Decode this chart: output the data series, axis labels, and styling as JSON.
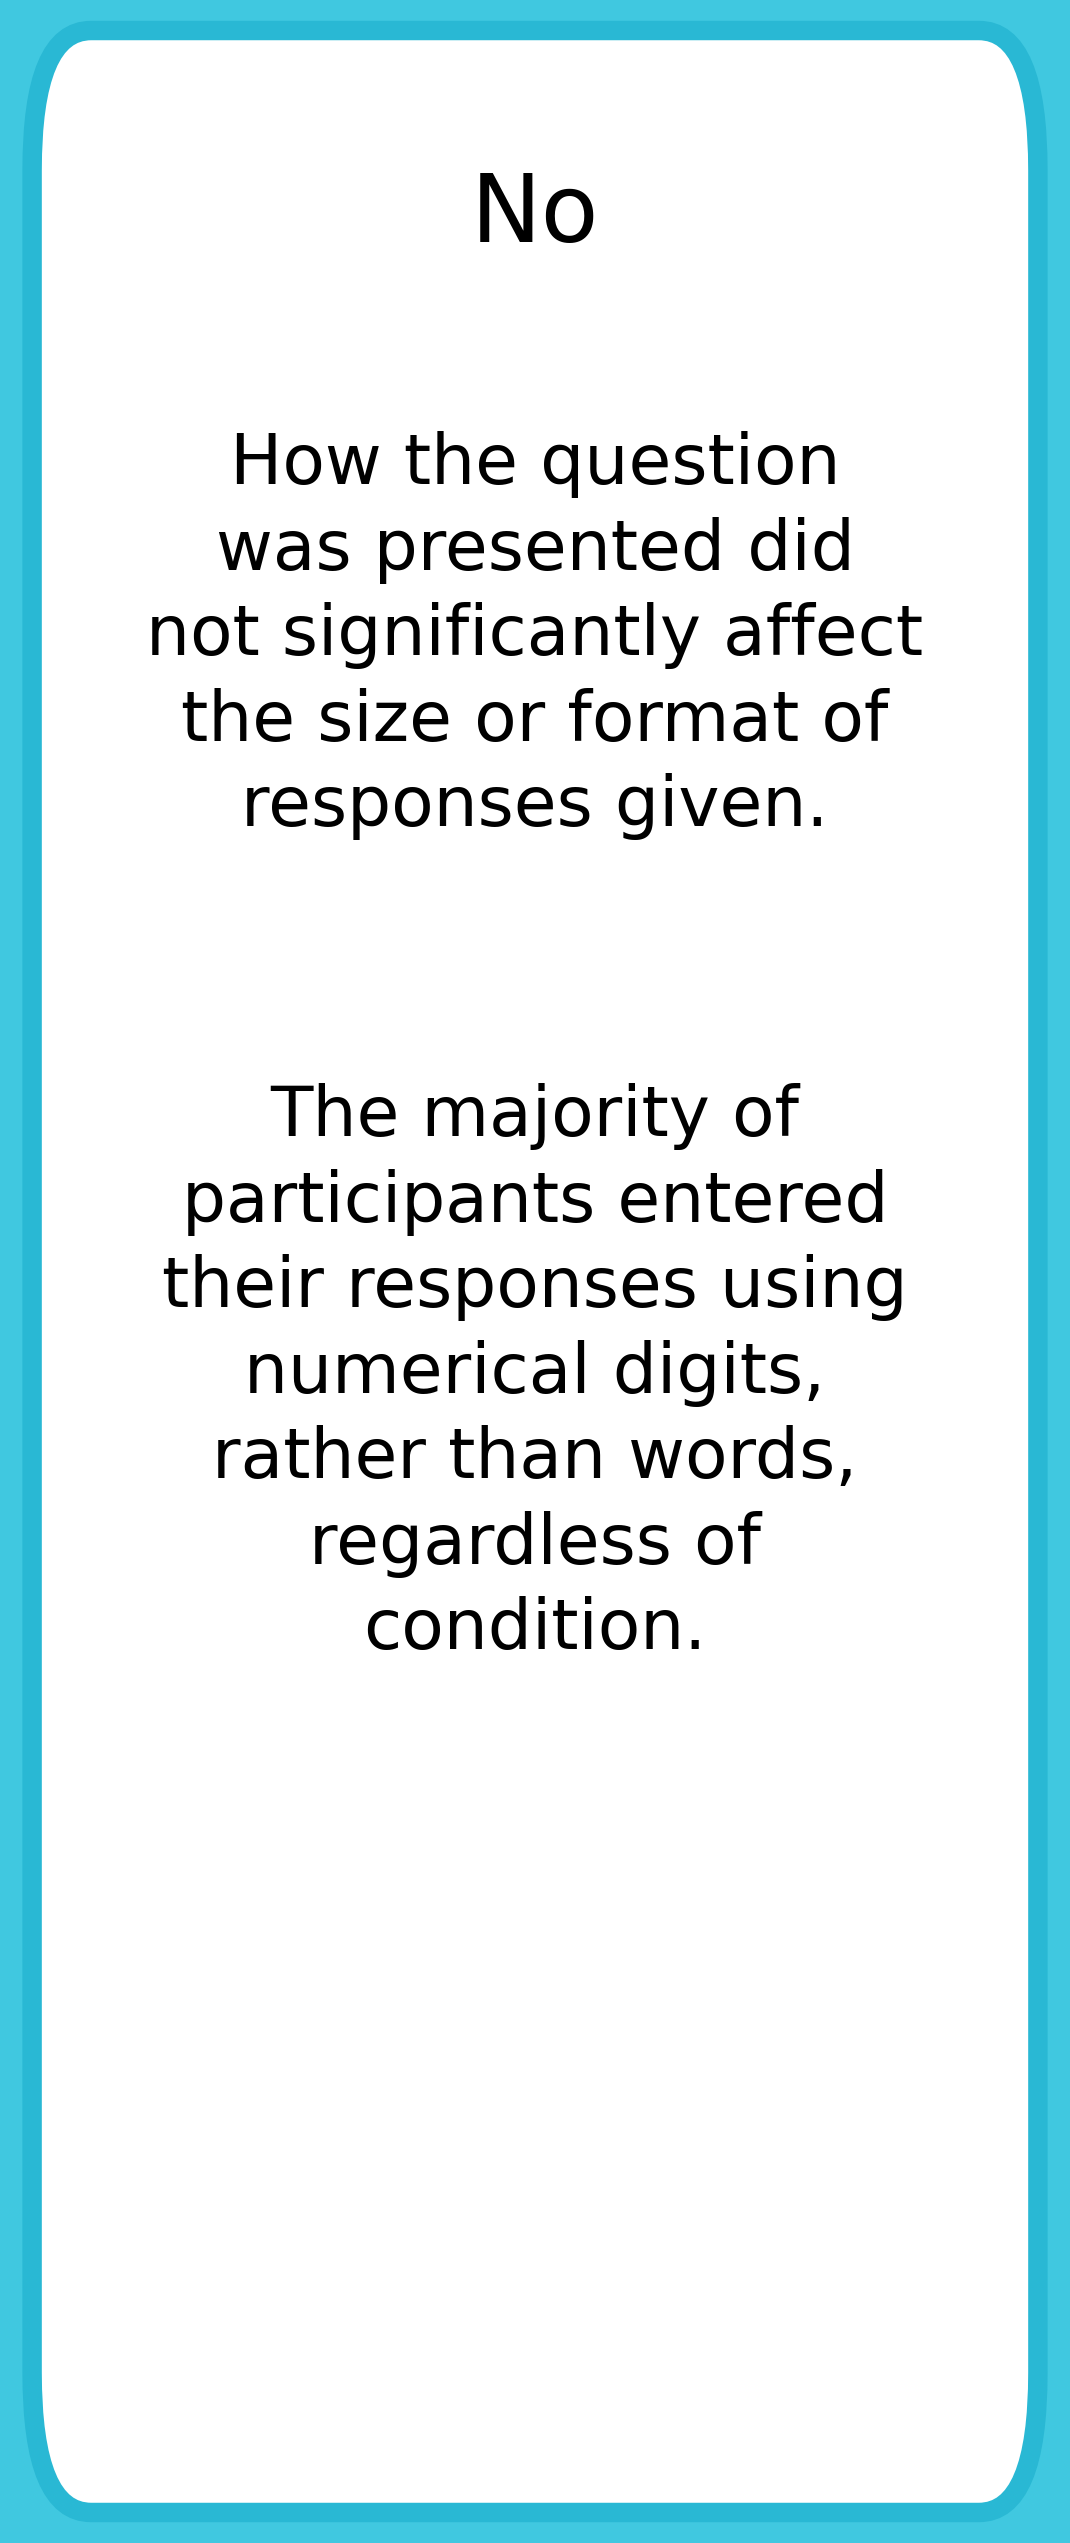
{
  "title": "No",
  "title_fontsize": 68,
  "paragraph1": "How the question\nwas presented did\nnot significantly affect\nthe size or format of\nresponses given.",
  "paragraph2": "The majority of\nparticipants entered\ntheir responses using\nnumerical digits,\nrather than words,\nregardless of\ncondition.",
  "body_fontsize": 50,
  "background_color": "#ffffff",
  "outer_background": "#40c8e0",
  "border_color": "#29b8d4",
  "border_linewidth": 14,
  "text_color": "#000000",
  "fig_width": 10.7,
  "fig_height": 25.43
}
